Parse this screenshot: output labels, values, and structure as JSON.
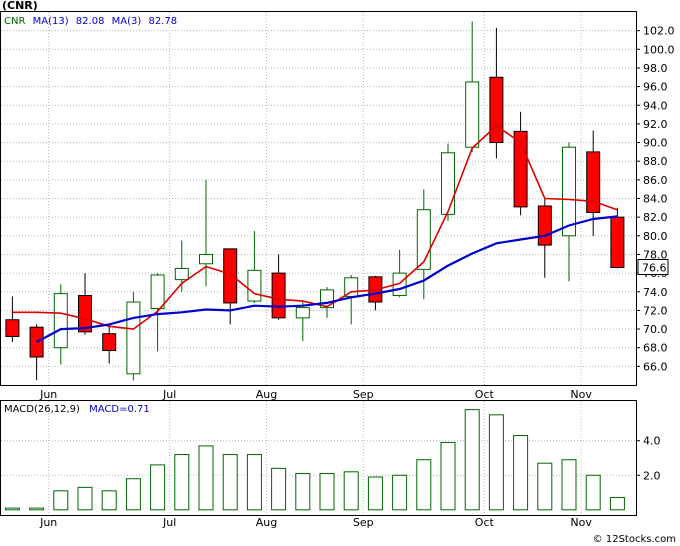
{
  "chart_data": [
    {
      "type": "candlestick",
      "symbol": "(CNR)",
      "legend": [
        {
          "text": "CNR",
          "color": "#006600"
        },
        {
          "text": "MA(13)",
          "color": "#0000cc"
        },
        {
          "text": "82.08",
          "color": "#0000cc"
        },
        {
          "text": "MA(3)",
          "color": "#0000cc"
        },
        {
          "text": "82.78",
          "color": "#0000cc"
        }
      ],
      "ylim": [
        64.0,
        104.0
      ],
      "y_ticks": [
        66.0,
        68.0,
        70.0,
        72.0,
        74.0,
        76.0,
        78.0,
        80.0,
        82.0,
        84.0,
        86.0,
        88.0,
        90.0,
        92.0,
        94.0,
        96.0,
        98.0,
        100.0,
        102.0
      ],
      "y_tick_labels": [
        "66.0",
        "68.0",
        "70.0",
        "72.0",
        "74.0",
        "76.0",
        "78.0",
        "80.0",
        "82.0",
        "84.0",
        "86.0",
        "88.0",
        "90.0",
        "92.0",
        "94.0",
        "96.0",
        "98.0",
        "100.0",
        "102.0"
      ],
      "last_price": 76.6,
      "last_price_label": "76.6",
      "x_labels": [
        {
          "index": 1.5,
          "label": "Jun"
        },
        {
          "index": 6.5,
          "label": "Jul"
        },
        {
          "index": 10.5,
          "label": "Aug"
        },
        {
          "index": 14.5,
          "label": "Sep"
        },
        {
          "index": 19.5,
          "label": "Oct"
        },
        {
          "index": 23.5,
          "label": "Nov"
        }
      ],
      "colors": {
        "up": "#006600",
        "down": "#000000",
        "down_fill": "#ff0000",
        "ma13": "#0000cc",
        "ma3": "#dd0000"
      },
      "candles": [
        {
          "open": 71.0,
          "high": 73.5,
          "low": 68.6,
          "close": 69.2
        },
        {
          "open": 70.2,
          "high": 70.5,
          "low": 64.5,
          "close": 67.0
        },
        {
          "open": 68.0,
          "high": 74.8,
          "low": 66.2,
          "close": 73.8
        },
        {
          "open": 73.6,
          "high": 76.0,
          "low": 69.4,
          "close": 69.7
        },
        {
          "open": 69.5,
          "high": 70.5,
          "low": 66.3,
          "close": 67.7
        },
        {
          "open": 65.2,
          "high": 74.0,
          "low": 64.5,
          "close": 72.9
        },
        {
          "open": 72.2,
          "high": 76.0,
          "low": 67.6,
          "close": 75.8
        },
        {
          "open": 75.3,
          "high": 79.5,
          "low": 74.0,
          "close": 76.5
        },
        {
          "open": 77.0,
          "high": 86.0,
          "low": 74.6,
          "close": 78.0
        },
        {
          "open": 78.6,
          "high": 78.6,
          "low": 70.5,
          "close": 72.8
        },
        {
          "open": 73.0,
          "high": 80.5,
          "low": 72.8,
          "close": 76.3
        },
        {
          "open": 76.0,
          "high": 78.0,
          "low": 71.0,
          "close": 71.2
        },
        {
          "open": 71.2,
          "high": 73.0,
          "low": 68.7,
          "close": 72.3
        },
        {
          "open": 72.3,
          "high": 74.5,
          "low": 71.2,
          "close": 74.2
        },
        {
          "open": 73.5,
          "high": 75.8,
          "low": 70.5,
          "close": 75.5
        },
        {
          "open": 75.6,
          "high": 75.7,
          "low": 72.0,
          "close": 72.9
        },
        {
          "open": 73.6,
          "high": 78.5,
          "low": 73.4,
          "close": 76.0
        },
        {
          "open": 76.4,
          "high": 85.0,
          "low": 73.2,
          "close": 82.8
        },
        {
          "open": 82.3,
          "high": 89.9,
          "low": 81.6,
          "close": 88.9
        },
        {
          "open": 89.5,
          "high": 103.0,
          "low": 89.0,
          "close": 96.5
        },
        {
          "open": 97.0,
          "high": 102.3,
          "low": 88.3,
          "close": 90.0
        },
        {
          "open": 91.2,
          "high": 93.3,
          "low": 82.2,
          "close": 83.1
        },
        {
          "open": 83.2,
          "high": 84.0,
          "low": 75.5,
          "close": 79.0
        },
        {
          "open": 80.0,
          "high": 90.0,
          "low": 75.1,
          "close": 89.5
        },
        {
          "open": 89.0,
          "high": 91.3,
          "low": 80.0,
          "close": 82.5
        },
        {
          "open": 82.0,
          "high": 83.0,
          "low": 76.5,
          "close": 76.6
        }
      ],
      "ma13": [
        null,
        68.6,
        70.0,
        70.1,
        70.5,
        71.2,
        71.6,
        71.8,
        72.1,
        72.0,
        72.5,
        72.4,
        72.5,
        72.8,
        73.4,
        73.8,
        74.3,
        75.2,
        76.8,
        78.1,
        79.2,
        79.6,
        80.0,
        81.1,
        81.8,
        82.08
      ],
      "ma3": [
        71.8,
        71.8,
        71.7,
        71.1,
        70.3,
        70.0,
        71.9,
        74.9,
        76.7,
        75.9,
        73.8,
        73.2,
        73.0,
        72.4,
        74.0,
        74.2,
        74.9,
        77.2,
        82.6,
        89.4,
        91.8,
        90.0,
        84.0,
        83.9,
        83.7,
        82.78
      ],
      "plot_label": "© 12Stocks.com"
    },
    {
      "type": "bar",
      "legend": [
        {
          "text": "MACD(26,12,9)",
          "color": "#000000"
        },
        {
          "text": "MACD=0.71",
          "color": "#0000cc"
        }
      ],
      "ylim": [
        -0.3,
        6.3
      ],
      "y_ticks": [
        2.0,
        4.0
      ],
      "y_tick_labels": [
        "2.0",
        "4.0"
      ],
      "colors": {
        "bar": "#006600"
      },
      "values": [
        0.1,
        0.1,
        1.1,
        1.3,
        1.1,
        1.8,
        2.6,
        3.2,
        3.7,
        3.2,
        3.2,
        2.4,
        2.1,
        2.1,
        2.2,
        1.9,
        2.0,
        2.9,
        3.9,
        5.8,
        5.5,
        4.3,
        2.7,
        2.9,
        2.0,
        0.71
      ],
      "x_labels": [
        {
          "index": 1.5,
          "label": "Jun"
        },
        {
          "index": 6.5,
          "label": "Jul"
        },
        {
          "index": 10.5,
          "label": "Aug"
        },
        {
          "index": 14.5,
          "label": "Sep"
        },
        {
          "index": 19.5,
          "label": "Oct"
        },
        {
          "index": 23.5,
          "label": "Nov"
        }
      ]
    }
  ]
}
